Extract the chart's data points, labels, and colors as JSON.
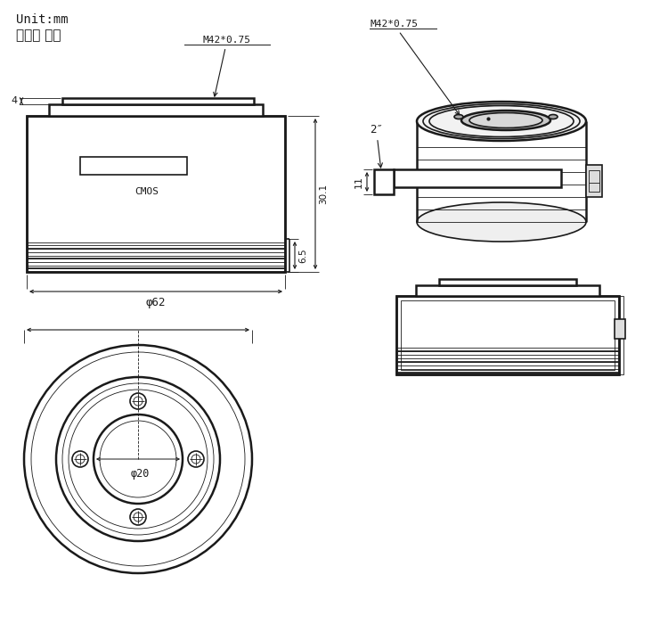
{
  "bg_color": "#ffffff",
  "lc": "#1a1a1a",
  "lw_thick": 1.8,
  "lw_mid": 1.2,
  "lw_thin": 0.6,
  "unit_text1": "Unit:mm",
  "unit_text2": "单位： 毫米",
  "label_m42": "M42*0.75",
  "label_cmos": "CMOS",
  "label_phi62": "φ62",
  "label_phi20": "φ20",
  "label_4": "4",
  "label_6_5": "6.5",
  "label_30_1": "30.1",
  "label_2in": "2″",
  "label_11": "11"
}
